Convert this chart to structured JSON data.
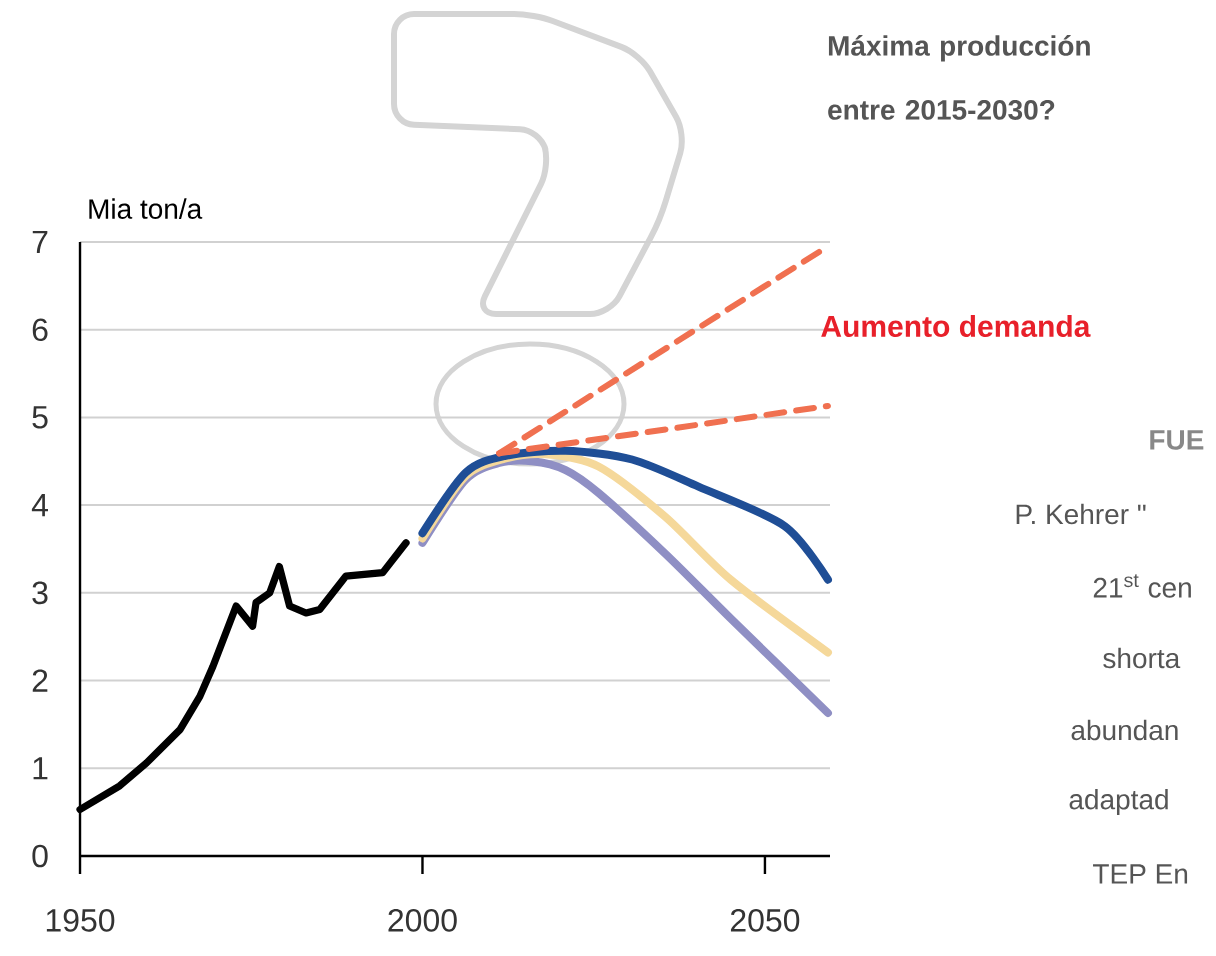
{
  "chart_data": {
    "type": "line",
    "title": "Máxima producción entre 2015-2030?",
    "ylabel": "Mia ton/a",
    "xlim": [
      1950,
      2059.5
    ],
    "xticks": [
      1950,
      2000,
      2050
    ],
    "ylim": [
      0,
      7
    ],
    "yticks": [
      0,
      1,
      2,
      3,
      4,
      5,
      6,
      7
    ],
    "grid": "y",
    "marker": "none",
    "series": [
      {
        "color": "#000000",
        "line_style": "solid",
        "x": [
          1950,
          1955.8,
          1959.7,
          1964.6,
          1967.5,
          1969.4,
          1972.8,
          1975.2,
          1975.7,
          1977.7,
          1979.1,
          1980.6,
          1983,
          1985,
          1988.8,
          1994.2,
          1997.6
        ],
        "values": [
          0.53,
          0.8,
          1.06,
          1.44,
          1.82,
          2.16,
          2.85,
          2.62,
          2.89,
          3.0,
          3.3,
          2.85,
          2.77,
          2.81,
          3.19,
          3.23,
          3.57
        ]
      },
      {
        "color": "#8f8fc4",
        "line_style": "solid",
        "x": [
          2000,
          2006.3,
          2011.2,
          2016,
          2020.9,
          2025.7,
          2035.4,
          2045.1,
          2059.2
        ],
        "values": [
          3.57,
          4.29,
          4.48,
          4.5,
          4.4,
          4.14,
          3.45,
          2.7,
          1.63
        ]
      },
      {
        "color": "#f5d89a",
        "line_style": "solid",
        "x": [
          2000,
          2006.3,
          2012,
          2018,
          2025.7,
          2035.4,
          2045,
          2059.2
        ],
        "values": [
          3.62,
          4.33,
          4.53,
          4.58,
          4.44,
          3.87,
          3.15,
          2.32
        ]
      },
      {
        "color": "#1f4e96",
        "line_style": "solid",
        "x": [
          2000,
          2006.3,
          2012,
          2020.9,
          2030.6,
          2040.3,
          2052.9,
          2059.2
        ],
        "values": [
          3.68,
          4.37,
          4.56,
          4.62,
          4.52,
          4.21,
          3.76,
          3.15
        ]
      },
      {
        "color": "#f07050",
        "line_style": "dashed",
        "x": [
          2011.2,
          2059.2
        ],
        "values": [
          4.59,
          6.95
        ]
      },
      {
        "color": "#f07050",
        "line_style": "dashed",
        "x": [
          2011.2,
          2059.2
        ],
        "values": [
          4.59,
          5.13
        ]
      }
    ],
    "annotations": [
      "Aumento demanda",
      "FUE",
      "P. Kehrer  \"",
      "21$^{st}$ cen",
      "shorta",
      "abundan",
      "adaptad",
      "TEP En"
    ]
  }
}
